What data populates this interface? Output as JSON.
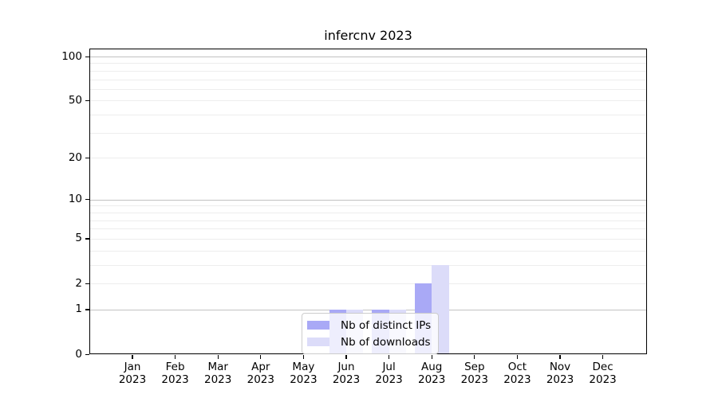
{
  "chart_data": {
    "type": "bar",
    "title": "infercnv 2023",
    "categories": [
      "Jan",
      "Feb",
      "Mar",
      "Apr",
      "May",
      "Jun",
      "Jul",
      "Aug",
      "Sep",
      "Oct",
      "Nov",
      "Dec"
    ],
    "year": "2023",
    "series": [
      {
        "name": "Nb of distinct IPs",
        "color": "#a9a9f6",
        "values": [
          0,
          0,
          0,
          0,
          0,
          1,
          1,
          2,
          0,
          0,
          0,
          0
        ]
      },
      {
        "name": "Nb of downloads",
        "color": "#dcdcf9",
        "values": [
          0,
          0,
          0,
          0,
          0,
          1,
          1,
          3,
          0,
          0,
          0,
          0
        ]
      }
    ],
    "yscale": "log1p",
    "ylim": [
      0,
      113
    ],
    "yticks": [
      0,
      1,
      2,
      5,
      10,
      20,
      50,
      100
    ],
    "major_gridlines": [
      1,
      10,
      100
    ],
    "minor_gridlines": [
      2,
      3,
      4,
      5,
      6,
      7,
      8,
      9,
      20,
      30,
      40,
      50,
      60,
      70,
      80,
      90
    ],
    "grid_color_major": "#c2c2c2",
    "grid_color_minor": "#ededed",
    "legend_position": "bottom-center",
    "grid": "on"
  }
}
